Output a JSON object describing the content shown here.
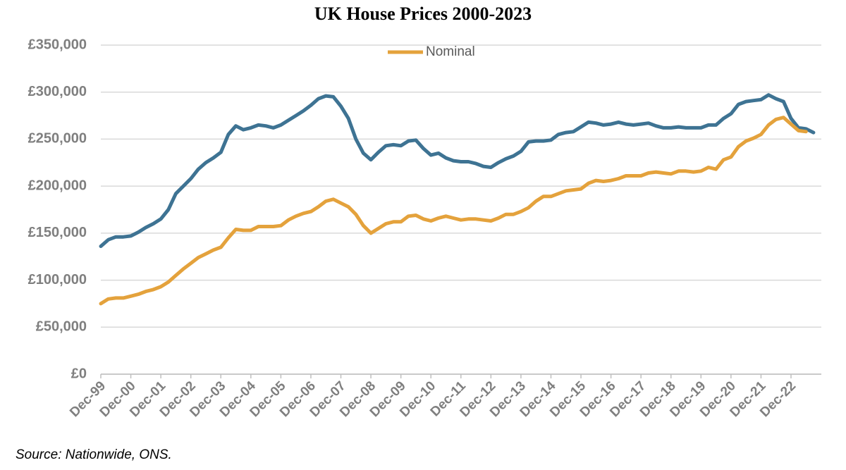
{
  "chart_data": {
    "type": "line",
    "title": "UK House Prices 2000-2023",
    "categories": [
      "Dec-99",
      null,
      null,
      null,
      "Dec-00",
      null,
      null,
      null,
      "Dec-01",
      null,
      null,
      null,
      "Dec-02",
      null,
      null,
      null,
      "Dec-03",
      null,
      null,
      null,
      "Dec-04",
      null,
      null,
      null,
      "Dec-05",
      null,
      null,
      null,
      "Dec-06",
      null,
      null,
      null,
      "Dec-07",
      null,
      null,
      null,
      "Dec-08",
      null,
      null,
      null,
      "Dec-09",
      null,
      null,
      null,
      "Dec-10",
      null,
      null,
      null,
      "Dec-11",
      null,
      null,
      null,
      "Dec-12",
      null,
      null,
      null,
      "Dec-13",
      null,
      null,
      null,
      "Dec-14",
      null,
      null,
      null,
      "Dec-15",
      null,
      null,
      null,
      "Dec-16",
      null,
      null,
      null,
      "Dec-17",
      null,
      null,
      null,
      "Dec-18",
      null,
      null,
      null,
      "Dec-19",
      null,
      null,
      null,
      "Dec-20",
      null,
      null,
      null,
      "Dec-21",
      null,
      null,
      null,
      "Dec-22",
      null,
      null,
      null
    ],
    "series": [
      {
        "color": "#3e7393",
        "values": [
          136000,
          143000,
          146000,
          146000,
          147000,
          151000,
          156000,
          160000,
          165000,
          175000,
          192000,
          200000,
          208000,
          218000,
          225000,
          230000,
          236000,
          255000,
          264000,
          260000,
          262000,
          265000,
          264000,
          262000,
          265000,
          270000,
          275000,
          280000,
          286000,
          293000,
          296000,
          295000,
          285000,
          272000,
          250000,
          235000,
          228000,
          236000,
          243000,
          244000,
          243000,
          248000,
          249000,
          240000,
          233000,
          235000,
          230000,
          227000,
          226000,
          226000,
          224000,
          221000,
          220000,
          225000,
          229000,
          232000,
          237000,
          247000,
          248000,
          248000,
          249000,
          255000,
          257000,
          258000,
          263000,
          268000,
          267000,
          265000,
          266000,
          268000,
          266000,
          265000,
          266000,
          267000,
          264000,
          262000,
          262000,
          263000,
          262000,
          262000,
          262000,
          265000,
          265000,
          272000,
          277000,
          287000,
          290000,
          291000,
          292000,
          297000,
          293000,
          290000,
          272000,
          262000,
          261000,
          257000
        ]
      },
      {
        "name": "Nominal",
        "color": "#e4a23c",
        "values": [
          75000,
          80000,
          81000,
          81000,
          83000,
          85000,
          88000,
          90000,
          93000,
          98000,
          105000,
          112000,
          118000,
          124000,
          128000,
          132000,
          135000,
          145000,
          154000,
          153000,
          153000,
          157000,
          157000,
          157000,
          158000,
          164000,
          168000,
          171000,
          173000,
          178000,
          184000,
          186000,
          182000,
          178000,
          170000,
          158000,
          150000,
          155000,
          160000,
          162000,
          162000,
          168000,
          169000,
          165000,
          163000,
          166000,
          168000,
          166000,
          164000,
          165000,
          165000,
          164000,
          163000,
          166000,
          170000,
          170000,
          173000,
          177000,
          184000,
          189000,
          189000,
          192000,
          195000,
          196000,
          197000,
          203000,
          206000,
          205000,
          206000,
          208000,
          211000,
          211000,
          211000,
          214000,
          215000,
          214000,
          213000,
          216000,
          216000,
          215000,
          216000,
          220000,
          218000,
          228000,
          231000,
          242000,
          248000,
          251000,
          255000,
          265000,
          271000,
          273000,
          266000,
          259000,
          258000,
          null
        ]
      }
    ],
    "ylim": [
      0,
      350000
    ],
    "yticks": [
      {
        "value": 0,
        "label": "£0"
      },
      {
        "value": 50000,
        "label": "£50,000"
      },
      {
        "value": 100000,
        "label": "£100,000"
      },
      {
        "value": 150000,
        "label": "£150,000"
      },
      {
        "value": 200000,
        "label": "£200,000"
      },
      {
        "value": 250000,
        "label": "£250,000"
      },
      {
        "value": 300000,
        "label": "£300,000"
      },
      {
        "value": 350000,
        "label": "£350,000"
      }
    ],
    "grid": true,
    "legend": "top",
    "source": "Source: Nationwide, ONS."
  }
}
